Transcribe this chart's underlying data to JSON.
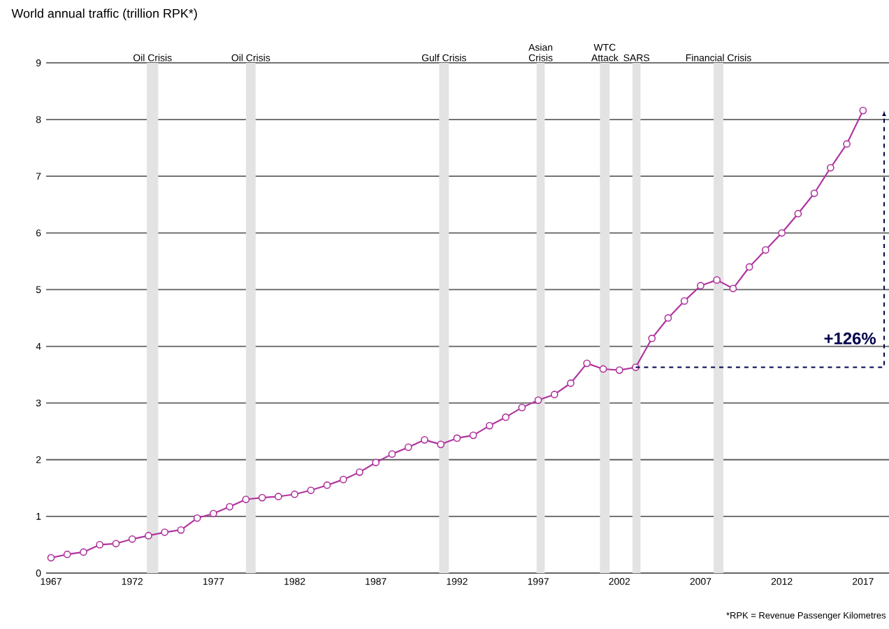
{
  "chart_data": {
    "type": "line",
    "title": "World annual traffic (trillion RPK*)",
    "x": [
      1967,
      1968,
      1969,
      1970,
      1971,
      1972,
      1973,
      1974,
      1975,
      1976,
      1977,
      1978,
      1979,
      1980,
      1981,
      1982,
      1983,
      1984,
      1985,
      1986,
      1987,
      1988,
      1989,
      1990,
      1991,
      1992,
      1993,
      1994,
      1995,
      1996,
      1997,
      1998,
      1999,
      2000,
      2001,
      2002,
      2003,
      2004,
      2005,
      2006,
      2007,
      2008,
      2009,
      2010,
      2011,
      2012,
      2013,
      2014,
      2015,
      2016,
      2017
    ],
    "series": [
      {
        "color": "#b0359f",
        "values": [
          0.27,
          0.33,
          0.37,
          0.5,
          0.52,
          0.6,
          0.66,
          0.72,
          0.76,
          0.97,
          1.05,
          1.17,
          1.3,
          1.33,
          1.35,
          1.39,
          1.46,
          1.55,
          1.65,
          1.78,
          1.95,
          2.1,
          2.22,
          2.35,
          2.27,
          2.38,
          2.43,
          2.6,
          2.75,
          2.92,
          3.05,
          3.15,
          3.35,
          3.7,
          3.6,
          3.58,
          3.63,
          4.14,
          4.5,
          4.8,
          5.07,
          5.17,
          5.02,
          5.4,
          5.7,
          6.0,
          6.34,
          6.7,
          7.15,
          7.57,
          8.16
        ]
      }
    ],
    "xlim": [
      1966.7,
      2018.6
    ],
    "xticks": [
      1967,
      1972,
      1977,
      1982,
      1987,
      1992,
      1997,
      2002,
      2007,
      2012,
      2017
    ],
    "ylim": [
      0,
      9
    ],
    "yticks": [
      0,
      1,
      2,
      3,
      4,
      5,
      6,
      7,
      8,
      9
    ],
    "grid": "y",
    "marker": "circle",
    "line_style": "solid",
    "bands": [
      {
        "axis": "x",
        "from": 1972.9,
        "to": 1973.6,
        "label": "Oil Crisis",
        "color": "#e3e3e3"
      },
      {
        "axis": "x",
        "from": 1979.0,
        "to": 1979.6,
        "label": "Oil Crisis",
        "color": "#e3e3e3"
      },
      {
        "axis": "x",
        "from": 1990.9,
        "to": 1991.5,
        "label": "Gulf Crisis",
        "color": "#e3e3e3"
      },
      {
        "axis": "x",
        "from": 1996.9,
        "to": 1997.4,
        "label": "Asian Crisis",
        "color": "#e3e3e3"
      },
      {
        "axis": "x",
        "from": 2000.8,
        "to": 2001.4,
        "label": "WTC Attack",
        "color": "#e3e3e3"
      },
      {
        "axis": "x",
        "from": 2002.8,
        "to": 2003.3,
        "label": "SARS",
        "color": "#e3e3e3"
      },
      {
        "axis": "x",
        "from": 2007.8,
        "to": 2008.4,
        "label": "Financial Crisis",
        "color": "#e3e3e3"
      }
    ],
    "annotations": [
      "+126%",
      "*RPK = Revenue Passenger Kilometres"
    ]
  }
}
